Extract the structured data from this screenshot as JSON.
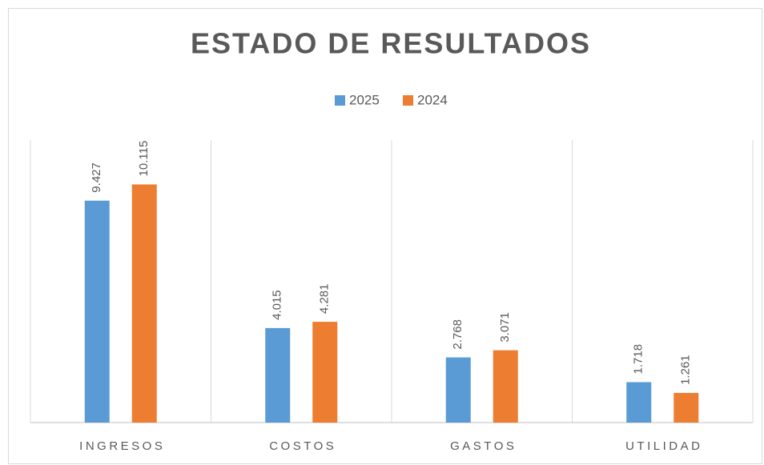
{
  "chart_data": {
    "type": "bar",
    "title": "ESTADO DE RESULTADOS",
    "categories": [
      "INGRESOS",
      "COSTOS",
      "GASTOS",
      "UTILIDAD"
    ],
    "series": [
      {
        "name": "2025",
        "color": "#5b9bd5",
        "values": [
          9427,
          4015,
          2768,
          1718
        ],
        "value_labels": [
          "9.427",
          "4.015",
          "2.768",
          "1.718"
        ]
      },
      {
        "name": "2024",
        "color": "#ed7d31",
        "values": [
          10115,
          4281,
          3071,
          1261
        ],
        "value_labels": [
          "10.115",
          "4.281",
          "3.071",
          "1.261"
        ]
      }
    ],
    "ylim": [
      0,
      12000
    ],
    "legend": "top"
  }
}
